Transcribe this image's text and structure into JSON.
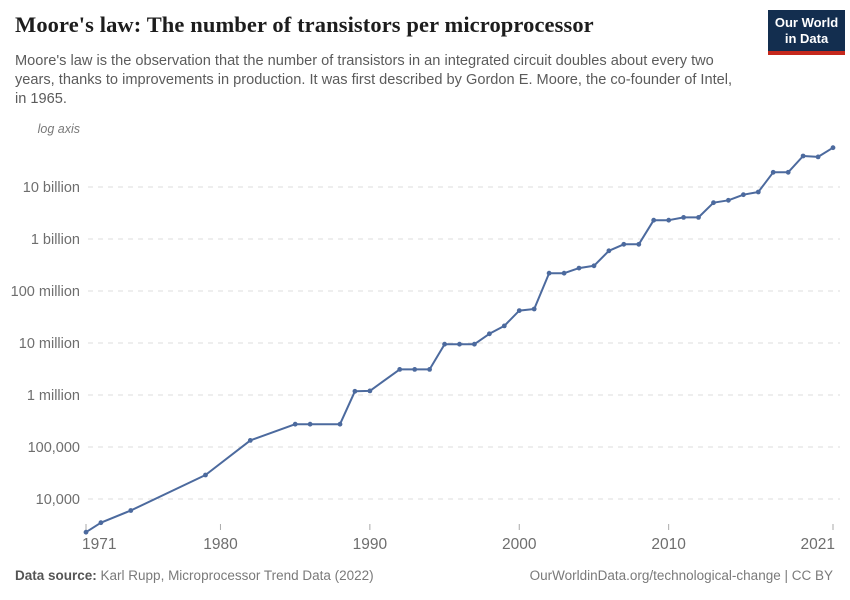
{
  "header": {
    "title": "Moore's law: The number of transistors per microprocessor",
    "subtitle_lines": [
      "Moore's law is the observation that the number of transistors in an integrated circuit doubles about every two",
      "years, thanks to improvements in production. It was first described by Gordon E. Moore, the co-founder of Intel,",
      "in 1965."
    ]
  },
  "logo": {
    "line1": "Our World",
    "line2": "in Data",
    "bg_color": "#132e4f",
    "bar_color": "#c5281c"
  },
  "chart_data": {
    "type": "line",
    "title": "Moore's law: The number of transistors per microprocessor",
    "axis_note": "log axis",
    "yscale": "log",
    "grid": true,
    "legend": "none",
    "line_color": "#4c6a9e",
    "grid_color": "#dcdcdc",
    "tick_label_color": "#6e6e6e",
    "xlim": [
      1971,
      2021
    ],
    "ylim": [
      2300,
      60000000000
    ],
    "x_ticks": [
      1971,
      1980,
      1990,
      2000,
      2010,
      2021
    ],
    "y_ticks": [
      {
        "label": "10 billion",
        "value": 10000000000
      },
      {
        "label": "1 billion",
        "value": 1000000000
      },
      {
        "label": "100 million",
        "value": 100000000
      },
      {
        "label": "10 million",
        "value": 10000000
      },
      {
        "label": "1 million",
        "value": 1000000
      },
      {
        "label": "100,000",
        "value": 100000
      },
      {
        "label": "10,000",
        "value": 10000
      }
    ],
    "x": [
      1971,
      1972,
      1974,
      1979,
      1982,
      1985,
      1986,
      1988,
      1989,
      1990,
      1992,
      1993,
      1994,
      1995,
      1996,
      1997,
      1998,
      1999,
      2000,
      2001,
      2002,
      2003,
      2004,
      2005,
      2006,
      2007,
      2008,
      2009,
      2010,
      2011,
      2012,
      2013,
      2014,
      2015,
      2016,
      2017,
      2018,
      2019,
      2020,
      2021
    ],
    "series": [
      {
        "name": "Transistors per microprocessor",
        "values": [
          2300,
          3500,
          6000,
          29000,
          134000,
          275000,
          275000,
          275000,
          1180000,
          1200000,
          3100000,
          3100000,
          3100000,
          9500000,
          9500000,
          9500000,
          15000000,
          21300000,
          42000000,
          45000000,
          220000000,
          220000000,
          276000000,
          305000000,
          592000000,
          790000000,
          790000000,
          2300000000,
          2300000000,
          2600000000,
          2600000000,
          5000000000,
          5560000000,
          7100000000,
          8000000000,
          19200000000,
          19200000000,
          39500000000,
          38000000000,
          57000000000
        ]
      }
    ]
  },
  "footer": {
    "datasource_label": "Data source:",
    "datasource_text": " Karl Rupp, Microprocessor Trend Data (2022)",
    "attribution": "OurWorldinData.org/technological-change | CC BY"
  }
}
